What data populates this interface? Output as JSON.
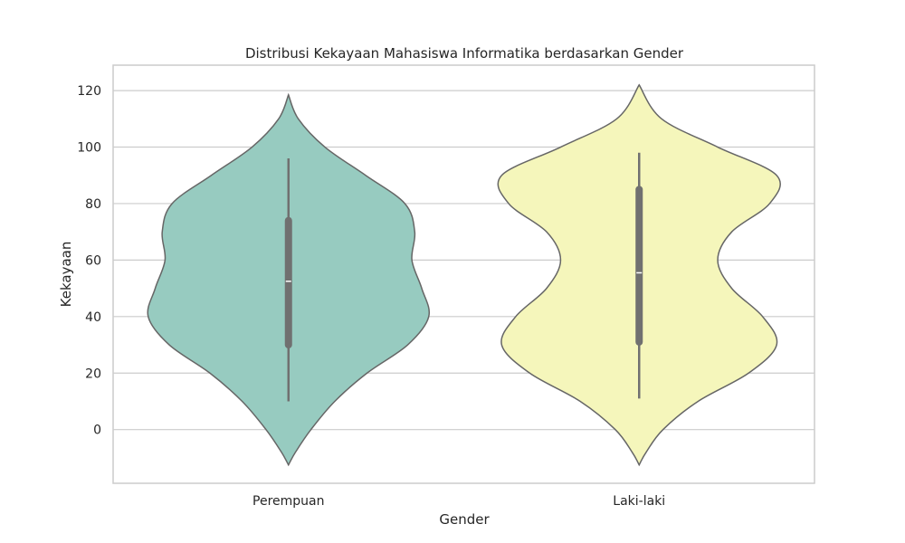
{
  "chart_data": {
    "type": "violin",
    "title": "Distribusi Kekayaan Mahasiswa Informatika berdasarkan Gender",
    "xlabel": "Gender",
    "ylabel": "Kekayaan",
    "ylim": [
      -19,
      129
    ],
    "yticks": [
      0,
      20,
      40,
      60,
      80,
      100,
      120
    ],
    "grid": "horizontal",
    "categories": [
      "Perempuan",
      "Laki-laki"
    ],
    "series": [
      {
        "category": "Perempuan",
        "color": "#97cbc0",
        "range": [
          -12.5,
          118.5
        ],
        "density_width": [
          [
            -12.5,
            0.0
          ],
          [
            -8,
            0.05
          ],
          [
            0,
            0.16
          ],
          [
            10,
            0.33
          ],
          [
            20,
            0.56
          ],
          [
            30,
            0.85
          ],
          [
            40,
            1.0
          ],
          [
            50,
            0.95
          ],
          [
            60,
            0.88
          ],
          [
            70,
            0.9
          ],
          [
            80,
            0.83
          ],
          [
            90,
            0.55
          ],
          [
            100,
            0.26
          ],
          [
            110,
            0.07
          ],
          [
            118.5,
            0.0
          ]
        ],
        "whisker": [
          10,
          96
        ],
        "q1": 30,
        "q3": 74,
        "median": 52.5
      },
      {
        "category": "Laki-laki",
        "color": "#f5f6bb",
        "range": [
          -12.5,
          122
        ],
        "density_width": [
          [
            -12.5,
            0.0
          ],
          [
            -8,
            0.05
          ],
          [
            0,
            0.17
          ],
          [
            10,
            0.42
          ],
          [
            20,
            0.78
          ],
          [
            30,
            0.98
          ],
          [
            40,
            0.88
          ],
          [
            50,
            0.66
          ],
          [
            60,
            0.56
          ],
          [
            70,
            0.66
          ],
          [
            80,
            0.93
          ],
          [
            90,
            0.98
          ],
          [
            100,
            0.56
          ],
          [
            110,
            0.16
          ],
          [
            122,
            0.0
          ]
        ],
        "whisker": [
          11,
          98
        ],
        "q1": 31,
        "q3": 85,
        "median": 55.5
      }
    ]
  }
}
